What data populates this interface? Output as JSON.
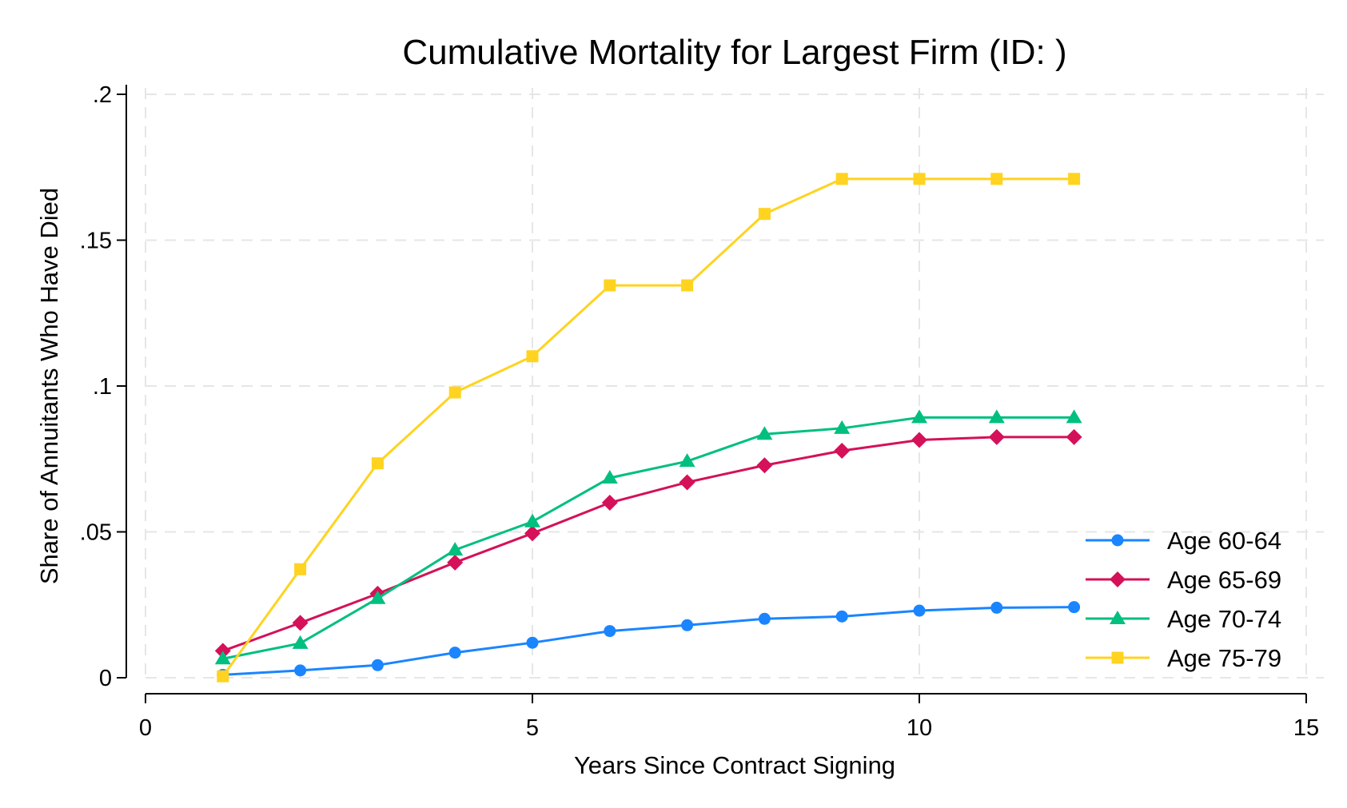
{
  "chart_data": {
    "type": "line",
    "title": "Cumulative Mortality for Largest Firm (ID: )",
    "xlabel": "Years Since Contract Signing",
    "ylabel": "Share of Annuitants Who Have Died",
    "xlim": [
      0,
      15
    ],
    "ylim": [
      0,
      0.2
    ],
    "xticks": [
      {
        "value": 0,
        "label": "0"
      },
      {
        "value": 5,
        "label": "5"
      },
      {
        "value": 10,
        "label": "10"
      },
      {
        "value": 15,
        "label": "15"
      }
    ],
    "yticks": [
      {
        "value": 0,
        "label": "0"
      },
      {
        "value": 0.05,
        "label": ".05"
      },
      {
        "value": 0.1,
        "label": ".1"
      },
      {
        "value": 0.15,
        "label": ".15"
      },
      {
        "value": 0.2,
        "label": ".2"
      }
    ],
    "grid": true,
    "legend_position": "bottom-right",
    "x": [
      1,
      2,
      3,
      4,
      5,
      6,
      7,
      8,
      9,
      10,
      11,
      12
    ],
    "series": [
      {
        "name": "Age 60-64",
        "color": "#1a85ff",
        "marker": "circle",
        "values": [
          0.001,
          0.0025,
          0.0043,
          0.0086,
          0.012,
          0.016,
          0.018,
          0.0202,
          0.021,
          0.023,
          0.024,
          0.0242
        ]
      },
      {
        "name": "Age 65-69",
        "color": "#d41159",
        "marker": "diamond",
        "values": [
          0.0092,
          0.0188,
          0.0288,
          0.0395,
          0.0495,
          0.06,
          0.067,
          0.0728,
          0.0778,
          0.0815,
          0.0825,
          0.0825
        ]
      },
      {
        "name": "Age 70-74",
        "color": "#00bf7f",
        "marker": "triangle",
        "values": [
          0.0065,
          0.0118,
          0.0272,
          0.0438,
          0.0535,
          0.0685,
          0.0742,
          0.0835,
          0.0855,
          0.0892,
          0.0892,
          0.0892
        ]
      },
      {
        "name": "Age 75-79",
        "color": "#ffd320",
        "marker": "square",
        "values": [
          0.0005,
          0.0372,
          0.0735,
          0.0978,
          0.1102,
          0.1345,
          0.1345,
          0.159,
          0.171,
          0.171,
          0.171,
          0.171
        ]
      }
    ]
  }
}
